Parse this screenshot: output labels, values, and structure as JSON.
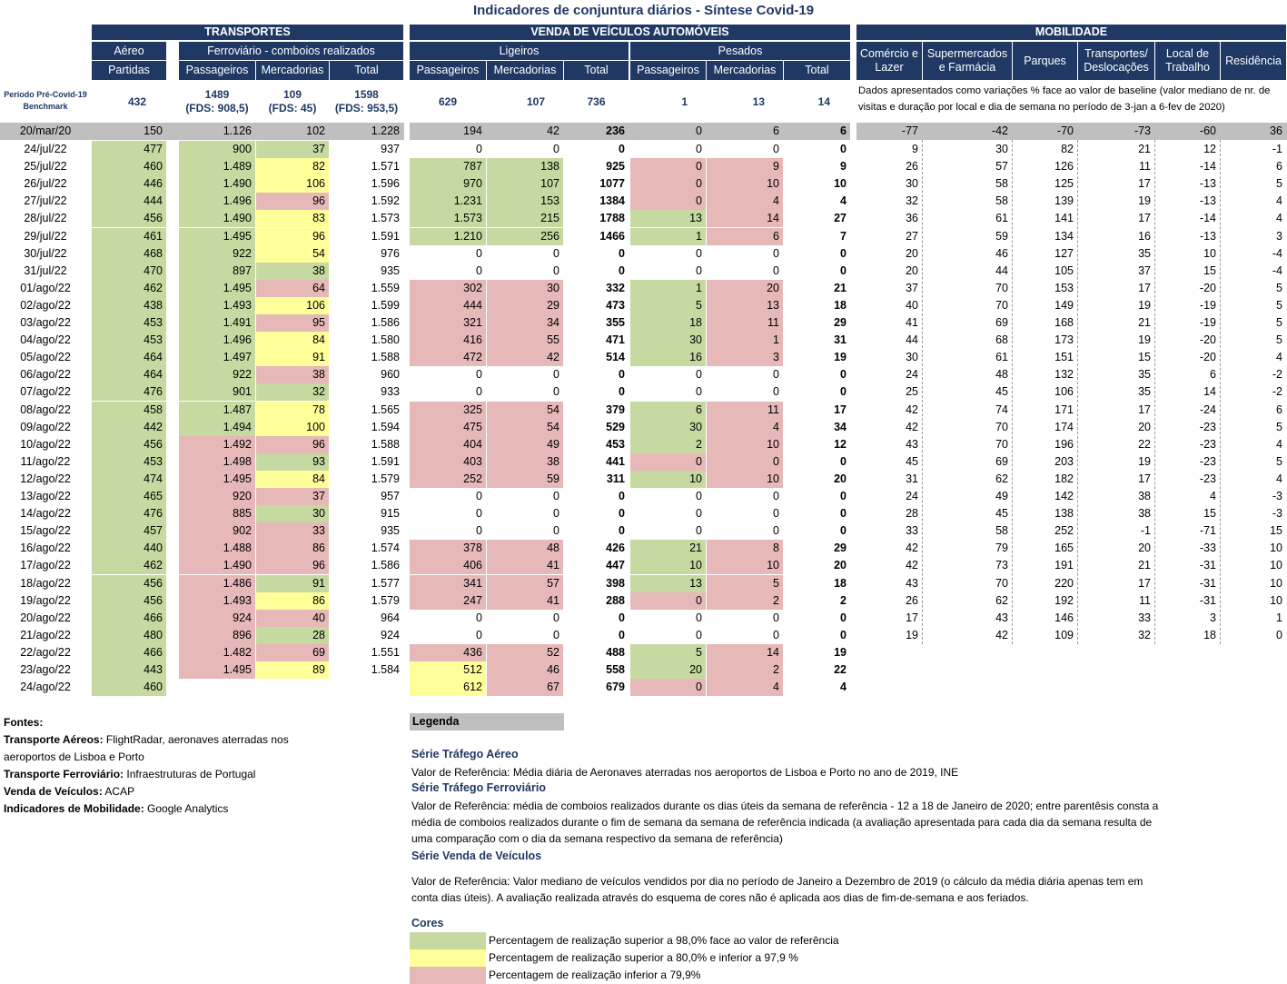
{
  "title": "Indicadores de conjuntura diários - Síntese Covid-19",
  "headers": {
    "transportes": "TRANSPORTES",
    "aereo": "Aéreo",
    "ferroviario": "Ferroviário - comboios realizados",
    "partidas": "Partidas",
    "passageiros": "Passageiros",
    "mercadorias": "Mercadorias",
    "total": "Total",
    "venda": "VENDA DE VEÍCULOS AUTOMÓVEIS",
    "ligeiros": "Ligeiros",
    "pesados": "Pesados",
    "mobilidade": "MOBILIDADE",
    "comercio": "Comércio e Lazer",
    "supermercados": "Supermercados e Farmácia",
    "parques": "Parques",
    "transportes_desl": "Transportes/ Deslocações",
    "local_trabalho": "Local de Trabalho",
    "residencia": "Residência"
  },
  "benchmark": {
    "label": "Período Pré-Covid-19 Benchmark",
    "aereo": "432",
    "fer_pass": "1489",
    "fer_pass_fds": "(FDS: 908,5)",
    "fer_merc": "109",
    "fer_merc_fds": "(FDS: 45)",
    "fer_total": "1598",
    "fer_total_fds": "(FDS: 953,5)",
    "lig_pass": "629",
    "lig_merc": "107",
    "lig_total": "736",
    "pes_pass": "1",
    "pes_merc": "13",
    "pes_total": "14",
    "mob_note": "Dados apresentados como variações % face ao valor de baseline (valor mediano de nr. de visitas e duração por local e dia de semana no período de 3-jan a 6-fev de 2020)"
  },
  "ref_row": {
    "date": "20/mar/20",
    "aereo": "150",
    "fer_pass": "1.126",
    "fer_merc": "102",
    "fer_total": "1.228",
    "lig_pass": "194",
    "lig_merc": "42",
    "lig_total": "236",
    "pes_pass": "0",
    "pes_merc": "6",
    "pes_total": "6",
    "mob": [
      "-77",
      "-42",
      "-70",
      "-73",
      "-60",
      "36"
    ]
  },
  "rows": [
    {
      "d": "24/jul/22",
      "a": "477",
      "ac": "g",
      "fp": "900",
      "fpc": "g",
      "fm": "37",
      "fmc": "g",
      "ft": "937",
      "lp": "0",
      "lpc": "",
      "lm": "0",
      "lmc": "",
      "lt": "0",
      "pp": "0",
      "ppc": "",
      "pm": "0",
      "pmc": "",
      "pt": "0",
      "mob": [
        "9",
        "30",
        "82",
        "21",
        "12",
        "-1"
      ]
    },
    {
      "d": "25/jul/22",
      "a": "460",
      "ac": "g",
      "fp": "1.489",
      "fpc": "g",
      "fm": "82",
      "fmc": "y",
      "ft": "1.571",
      "lp": "787",
      "lpc": "g",
      "lm": "138",
      "lmc": "g",
      "lt": "925",
      "pp": "0",
      "ppc": "p",
      "pm": "9",
      "pmc": "p",
      "pt": "9",
      "mob": [
        "26",
        "57",
        "126",
        "11",
        "-14",
        "6"
      ]
    },
    {
      "d": "26/jul/22",
      "a": "446",
      "ac": "g",
      "fp": "1.490",
      "fpc": "g",
      "fm": "106",
      "fmc": "y",
      "ft": "1.596",
      "lp": "970",
      "lpc": "g",
      "lm": "107",
      "lmc": "g",
      "lt": "1077",
      "pp": "0",
      "ppc": "p",
      "pm": "10",
      "pmc": "p",
      "pt": "10",
      "mob": [
        "30",
        "58",
        "125",
        "17",
        "-13",
        "5"
      ]
    },
    {
      "d": "27/jul/22",
      "a": "444",
      "ac": "g",
      "fp": "1.496",
      "fpc": "g",
      "fm": "96",
      "fmc": "p",
      "ft": "1.592",
      "lp": "1.231",
      "lpc": "g",
      "lm": "153",
      "lmc": "g",
      "lt": "1384",
      "pp": "0",
      "ppc": "p",
      "pm": "4",
      "pmc": "p",
      "pt": "4",
      "mob": [
        "32",
        "58",
        "139",
        "19",
        "-13",
        "4"
      ]
    },
    {
      "d": "28/jul/22",
      "a": "456",
      "ac": "g",
      "fp": "1.490",
      "fpc": "g",
      "fm": "83",
      "fmc": "y",
      "ft": "1.573",
      "lp": "1.573",
      "lpc": "g",
      "lm": "215",
      "lmc": "g",
      "lt": "1788",
      "pp": "13",
      "ppc": "g",
      "pm": "14",
      "pmc": "p",
      "pt": "27",
      "mob": [
        "36",
        "61",
        "141",
        "17",
        "-14",
        "4"
      ]
    },
    {
      "d": "29/jul/22",
      "a": "461",
      "ac": "g",
      "fp": "1.495",
      "fpc": "g",
      "fm": "96",
      "fmc": "y",
      "ft": "1.591",
      "lp": "1.210",
      "lpc": "g",
      "lm": "256",
      "lmc": "g",
      "lt": "1466",
      "pp": "1",
      "ppc": "g",
      "pm": "6",
      "pmc": "p",
      "pt": "7",
      "mob": [
        "27",
        "59",
        "134",
        "16",
        "-13",
        "3"
      ]
    },
    {
      "d": "30/jul/22",
      "a": "468",
      "ac": "g",
      "fp": "922",
      "fpc": "g",
      "fm": "54",
      "fmc": "y",
      "ft": "976",
      "lp": "0",
      "lpc": "",
      "lm": "0",
      "lmc": "",
      "lt": "0",
      "pp": "0",
      "ppc": "",
      "pm": "0",
      "pmc": "",
      "pt": "0",
      "mob": [
        "20",
        "46",
        "127",
        "35",
        "10",
        "-4"
      ]
    },
    {
      "d": "31/jul/22",
      "a": "470",
      "ac": "g",
      "fp": "897",
      "fpc": "g",
      "fm": "38",
      "fmc": "g",
      "ft": "935",
      "lp": "0",
      "lpc": "",
      "lm": "0",
      "lmc": "",
      "lt": "0",
      "pp": "0",
      "ppc": "",
      "pm": "0",
      "pmc": "",
      "pt": "0",
      "mob": [
        "20",
        "44",
        "105",
        "37",
        "15",
        "-4"
      ]
    },
    {
      "d": "01/ago/22",
      "a": "462",
      "ac": "g",
      "fp": "1.495",
      "fpc": "g",
      "fm": "64",
      "fmc": "p",
      "ft": "1.559",
      "lp": "302",
      "lpc": "p",
      "lm": "30",
      "lmc": "p",
      "lt": "332",
      "pp": "1",
      "ppc": "g",
      "pm": "20",
      "pmc": "p",
      "pt": "21",
      "mob": [
        "37",
        "70",
        "153",
        "17",
        "-20",
        "5"
      ]
    },
    {
      "d": "02/ago/22",
      "a": "438",
      "ac": "g",
      "fp": "1.493",
      "fpc": "g",
      "fm": "106",
      "fmc": "y",
      "ft": "1.599",
      "lp": "444",
      "lpc": "p",
      "lm": "29",
      "lmc": "p",
      "lt": "473",
      "pp": "5",
      "ppc": "g",
      "pm": "13",
      "pmc": "p",
      "pt": "18",
      "mob": [
        "40",
        "70",
        "149",
        "19",
        "-19",
        "5"
      ]
    },
    {
      "d": "03/ago/22",
      "a": "453",
      "ac": "g",
      "fp": "1.491",
      "fpc": "g",
      "fm": "95",
      "fmc": "p",
      "ft": "1.586",
      "lp": "321",
      "lpc": "p",
      "lm": "34",
      "lmc": "p",
      "lt": "355",
      "pp": "18",
      "ppc": "g",
      "pm": "11",
      "pmc": "p",
      "pt": "29",
      "mob": [
        "41",
        "69",
        "168",
        "21",
        "-19",
        "5"
      ]
    },
    {
      "d": "04/ago/22",
      "a": "453",
      "ac": "g",
      "fp": "1.496",
      "fpc": "g",
      "fm": "84",
      "fmc": "y",
      "ft": "1.580",
      "lp": "416",
      "lpc": "p",
      "lm": "55",
      "lmc": "p",
      "lt": "471",
      "pp": "30",
      "ppc": "g",
      "pm": "1",
      "pmc": "p",
      "pt": "31",
      "mob": [
        "44",
        "68",
        "173",
        "19",
        "-20",
        "5"
      ]
    },
    {
      "d": "05/ago/22",
      "a": "464",
      "ac": "g",
      "fp": "1.497",
      "fpc": "g",
      "fm": "91",
      "fmc": "y",
      "ft": "1.588",
      "lp": "472",
      "lpc": "p",
      "lm": "42",
      "lmc": "p",
      "lt": "514",
      "pp": "16",
      "ppc": "g",
      "pm": "3",
      "pmc": "p",
      "pt": "19",
      "mob": [
        "30",
        "61",
        "151",
        "15",
        "-20",
        "4"
      ]
    },
    {
      "d": "06/ago/22",
      "a": "464",
      "ac": "g",
      "fp": "922",
      "fpc": "g",
      "fm": "38",
      "fmc": "p",
      "ft": "960",
      "lp": "0",
      "lpc": "",
      "lm": "0",
      "lmc": "",
      "lt": "0",
      "pp": "0",
      "ppc": "",
      "pm": "0",
      "pmc": "",
      "pt": "0",
      "mob": [
        "24",
        "48",
        "132",
        "35",
        "6",
        "-2"
      ]
    },
    {
      "d": "07/ago/22",
      "a": "476",
      "ac": "g",
      "fp": "901",
      "fpc": "g",
      "fm": "32",
      "fmc": "g",
      "ft": "933",
      "lp": "0",
      "lpc": "",
      "lm": "0",
      "lmc": "",
      "lt": "0",
      "pp": "0",
      "ppc": "",
      "pm": "0",
      "pmc": "",
      "pt": "0",
      "mob": [
        "25",
        "45",
        "106",
        "35",
        "14",
        "-2"
      ]
    },
    {
      "d": "08/ago/22",
      "a": "458",
      "ac": "g",
      "fp": "1.487",
      "fpc": "g",
      "fm": "78",
      "fmc": "y",
      "ft": "1.565",
      "lp": "325",
      "lpc": "p",
      "lm": "54",
      "lmc": "p",
      "lt": "379",
      "pp": "6",
      "ppc": "g",
      "pm": "11",
      "pmc": "p",
      "pt": "17",
      "mob": [
        "42",
        "74",
        "171",
        "17",
        "-24",
        "6"
      ]
    },
    {
      "d": "09/ago/22",
      "a": "442",
      "ac": "g",
      "fp": "1.494",
      "fpc": "g",
      "fm": "100",
      "fmc": "y",
      "ft": "1.594",
      "lp": "475",
      "lpc": "p",
      "lm": "54",
      "lmc": "p",
      "lt": "529",
      "pp": "30",
      "ppc": "g",
      "pm": "4",
      "pmc": "p",
      "pt": "34",
      "mob": [
        "42",
        "70",
        "174",
        "20",
        "-23",
        "5"
      ]
    },
    {
      "d": "10/ago/22",
      "a": "456",
      "ac": "g",
      "fp": "1.492",
      "fpc": "p",
      "fm": "96",
      "fmc": "p",
      "ft": "1.588",
      "lp": "404",
      "lpc": "p",
      "lm": "49",
      "lmc": "p",
      "lt": "453",
      "pp": "2",
      "ppc": "g",
      "pm": "10",
      "pmc": "p",
      "pt": "12",
      "mob": [
        "43",
        "70",
        "196",
        "22",
        "-23",
        "4"
      ]
    },
    {
      "d": "11/ago/22",
      "a": "453",
      "ac": "g",
      "fp": "1.498",
      "fpc": "p",
      "fm": "93",
      "fmc": "g",
      "ft": "1.591",
      "lp": "403",
      "lpc": "p",
      "lm": "38",
      "lmc": "p",
      "lt": "441",
      "pp": "0",
      "ppc": "p",
      "pm": "0",
      "pmc": "p",
      "pt": "0",
      "mob": [
        "45",
        "69",
        "203",
        "19",
        "-23",
        "5"
      ]
    },
    {
      "d": "12/ago/22",
      "a": "474",
      "ac": "g",
      "fp": "1.495",
      "fpc": "p",
      "fm": "84",
      "fmc": "y",
      "ft": "1.579",
      "lp": "252",
      "lpc": "p",
      "lm": "59",
      "lmc": "p",
      "lt": "311",
      "pp": "10",
      "ppc": "g",
      "pm": "10",
      "pmc": "p",
      "pt": "20",
      "mob": [
        "31",
        "62",
        "182",
        "17",
        "-23",
        "4"
      ]
    },
    {
      "d": "13/ago/22",
      "a": "465",
      "ac": "g",
      "fp": "920",
      "fpc": "p",
      "fm": "37",
      "fmc": "p",
      "ft": "957",
      "lp": "0",
      "lpc": "",
      "lm": "0",
      "lmc": "",
      "lt": "0",
      "pp": "0",
      "ppc": "",
      "pm": "0",
      "pmc": "",
      "pt": "0",
      "mob": [
        "24",
        "49",
        "142",
        "38",
        "4",
        "-3"
      ]
    },
    {
      "d": "14/ago/22",
      "a": "476",
      "ac": "g",
      "fp": "885",
      "fpc": "p",
      "fm": "30",
      "fmc": "g",
      "ft": "915",
      "lp": "0",
      "lpc": "",
      "lm": "0",
      "lmc": "",
      "lt": "0",
      "pp": "0",
      "ppc": "",
      "pm": "0",
      "pmc": "",
      "pt": "0",
      "mob": [
        "28",
        "45",
        "138",
        "38",
        "15",
        "-3"
      ]
    },
    {
      "d": "15/ago/22",
      "a": "457",
      "ac": "g",
      "fp": "902",
      "fpc": "p",
      "fm": "33",
      "fmc": "p",
      "ft": "935",
      "lp": "0",
      "lpc": "",
      "lm": "0",
      "lmc": "",
      "lt": "0",
      "pp": "0",
      "ppc": "",
      "pm": "0",
      "pmc": "",
      "pt": "0",
      "mob": [
        "33",
        "58",
        "252",
        "-1",
        "-71",
        "15"
      ]
    },
    {
      "d": "16/ago/22",
      "a": "440",
      "ac": "g",
      "fp": "1.488",
      "fpc": "p",
      "fm": "86",
      "fmc": "p",
      "ft": "1.574",
      "lp": "378",
      "lpc": "p",
      "lm": "48",
      "lmc": "p",
      "lt": "426",
      "pp": "21",
      "ppc": "g",
      "pm": "8",
      "pmc": "p",
      "pt": "29",
      "mob": [
        "42",
        "79",
        "165",
        "20",
        "-33",
        "10"
      ]
    },
    {
      "d": "17/ago/22",
      "a": "462",
      "ac": "g",
      "fp": "1.490",
      "fpc": "p",
      "fm": "96",
      "fmc": "p",
      "ft": "1.586",
      "lp": "406",
      "lpc": "p",
      "lm": "41",
      "lmc": "p",
      "lt": "447",
      "pp": "10",
      "ppc": "g",
      "pm": "10",
      "pmc": "p",
      "pt": "20",
      "mob": [
        "42",
        "73",
        "191",
        "21",
        "-31",
        "10"
      ]
    },
    {
      "d": "18/ago/22",
      "a": "456",
      "ac": "g",
      "fp": "1.486",
      "fpc": "p",
      "fm": "91",
      "fmc": "g",
      "ft": "1.577",
      "lp": "341",
      "lpc": "p",
      "lm": "57",
      "lmc": "p",
      "lt": "398",
      "pp": "13",
      "ppc": "g",
      "pm": "5",
      "pmc": "p",
      "pt": "18",
      "mob": [
        "43",
        "70",
        "220",
        "17",
        "-31",
        "10"
      ]
    },
    {
      "d": "19/ago/22",
      "a": "456",
      "ac": "g",
      "fp": "1.493",
      "fpc": "p",
      "fm": "86",
      "fmc": "y",
      "ft": "1.579",
      "lp": "247",
      "lpc": "p",
      "lm": "41",
      "lmc": "p",
      "lt": "288",
      "pp": "0",
      "ppc": "p",
      "pm": "2",
      "pmc": "p",
      "pt": "2",
      "mob": [
        "26",
        "62",
        "192",
        "11",
        "-31",
        "10"
      ]
    },
    {
      "d": "20/ago/22",
      "a": "466",
      "ac": "g",
      "fp": "924",
      "fpc": "p",
      "fm": "40",
      "fmc": "p",
      "ft": "964",
      "lp": "0",
      "lpc": "",
      "lm": "0",
      "lmc": "",
      "lt": "0",
      "pp": "0",
      "ppc": "",
      "pm": "0",
      "pmc": "",
      "pt": "0",
      "mob": [
        "17",
        "43",
        "146",
        "33",
        "3",
        "1"
      ]
    },
    {
      "d": "21/ago/22",
      "a": "480",
      "ac": "g",
      "fp": "896",
      "fpc": "p",
      "fm": "28",
      "fmc": "g",
      "ft": "924",
      "lp": "0",
      "lpc": "",
      "lm": "0",
      "lmc": "",
      "lt": "0",
      "pp": "0",
      "ppc": "",
      "pm": "0",
      "pmc": "",
      "pt": "0",
      "mob": [
        "19",
        "42",
        "109",
        "32",
        "18",
        "0"
      ]
    },
    {
      "d": "22/ago/22",
      "a": "466",
      "ac": "g",
      "fp": "1.482",
      "fpc": "p",
      "fm": "69",
      "fmc": "p",
      "ft": "1.551",
      "lp": "436",
      "lpc": "p",
      "lm": "52",
      "lmc": "p",
      "lt": "488",
      "pp": "5",
      "ppc": "g",
      "pm": "14",
      "pmc": "p",
      "pt": "19",
      "mob": null
    },
    {
      "d": "23/ago/22",
      "a": "443",
      "ac": "g",
      "fp": "1.495",
      "fpc": "p",
      "fm": "89",
      "fmc": "y",
      "ft": "1.584",
      "lp": "512",
      "lpc": "y",
      "lm": "46",
      "lmc": "p",
      "lt": "558",
      "pp": "20",
      "ppc": "g",
      "pm": "2",
      "pmc": "p",
      "pt": "22",
      "mob": null
    },
    {
      "d": "24/ago/22",
      "a": "460",
      "ac": "g",
      "fp": null,
      "fpc": "",
      "fm": null,
      "fmc": "",
      "ft": null,
      "lp": "612",
      "lpc": "y",
      "lm": "67",
      "lmc": "p",
      "lt": "679",
      "pp": "0",
      "ppc": "p",
      "pm": "4",
      "pmc": "p",
      "pt": "4",
      "mob": null
    }
  ],
  "fontes": {
    "title": "Fontes:",
    "items": [
      {
        "k": "Transporte Aéreos:",
        "v": " FlightRadar, aeronaves aterradas nos"
      },
      {
        "k": "",
        "v": "aeroportos de Lisboa e Porto"
      },
      {
        "k": "Transporte Ferroviário:",
        "v": " Infraestruturas de Portugal"
      },
      {
        "k": "Venda de Veículos:",
        "v": " ACAP"
      },
      {
        "k": "Indicadores de Mobilidade:",
        "v": " Google Analytics"
      }
    ]
  },
  "legenda": {
    "title": "Legenda",
    "aereo_h": "Série Tráfego Aéreo",
    "aereo_t": "Valor de Referência: Média diária de Aeronaves aterradas nos aeroportos de Lisboa e Porto no ano de 2019, INE",
    "fer_h": "Série Tráfego Ferroviário",
    "fer_t": "Valor de Referência: média de comboios realizados durante os dias úteis da semana de referência - 12 a 18 de Janeiro de 2020; entre parentêsis consta a média de comboios realizados durante o fim de semana da semana de referência indicada (a avaliação apresentada para cada dia da semana resulta de uma comparação com o dia da semana respectivo da semana de referência)",
    "vei_h": "Série Venda de Veículos",
    "vei_t": "Valor de Referência: Valor mediano de veículos vendidos por dia no período de Janeiro a Dezembro de 2019 (o cálculo da média diária apenas tem em conta dias úteis). A avaliação realizada através do esquema de cores não é aplicada aos dias de fim-de-semana e aos feriados.",
    "cores_h": "Cores",
    "cores": [
      {
        "color": "#c5d9a0",
        "label": "Percentagem de realização superior a 98,0% face ao valor de referência"
      },
      {
        "color": "#ffff99",
        "label": "Percentagem de realização superior a 80,0% e inferior a 97,9 %"
      },
      {
        "color": "#e6b8b7",
        "label": "Percentagem de realização inferior a 79,9%"
      }
    ]
  }
}
